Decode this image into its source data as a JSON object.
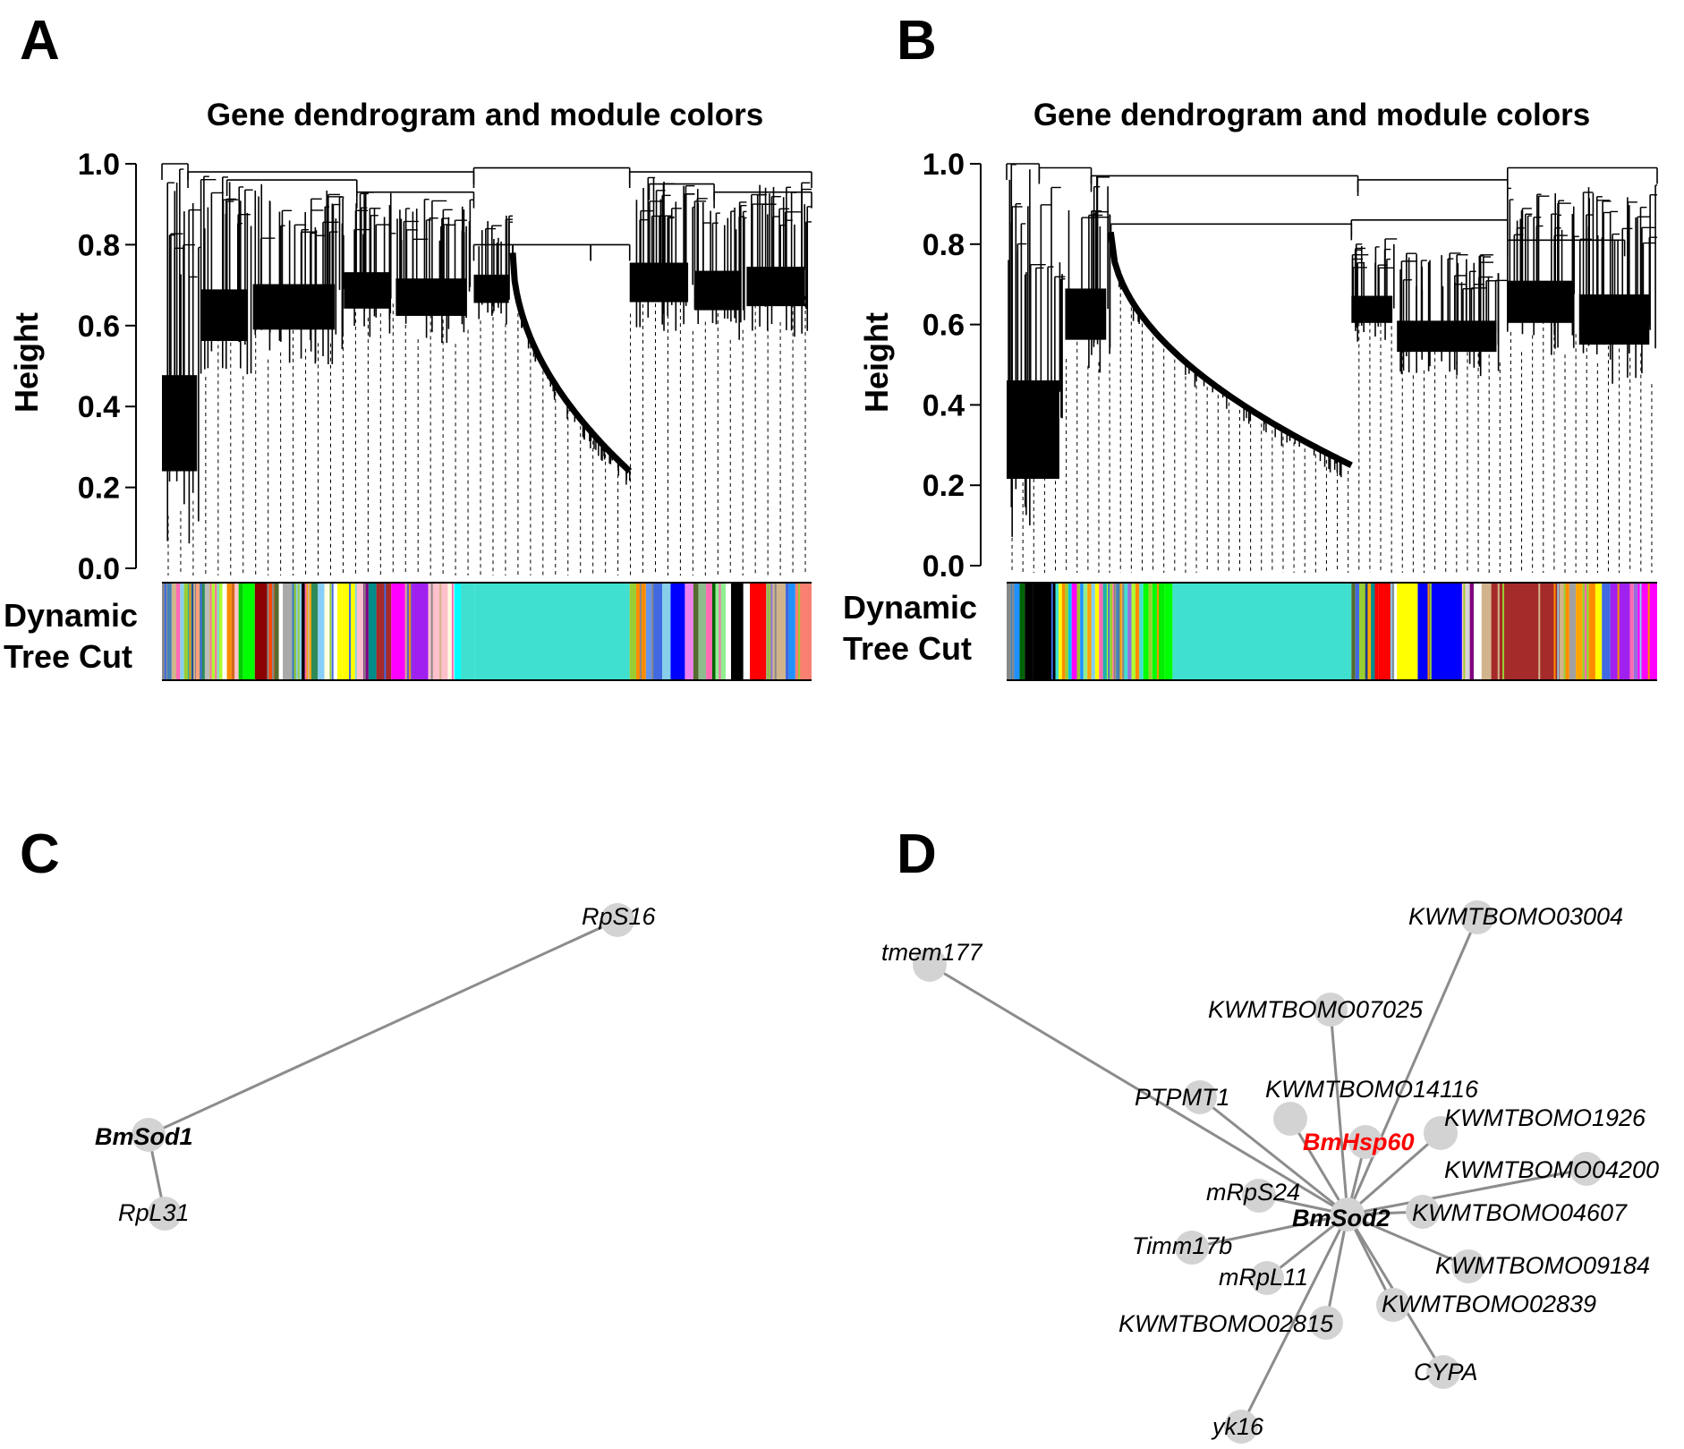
{
  "figure": {
    "panels": [
      {
        "letter": "A"
      },
      {
        "letter": "B"
      },
      {
        "letter": "C"
      },
      {
        "letter": "D"
      }
    ]
  },
  "chart_data": [
    {
      "panel": "A",
      "type": "dendrogram",
      "title": "Gene dendrogram and module colors",
      "ylabel": "Height",
      "ylim": [
        0.0,
        1.0
      ],
      "yticks": [
        "0.0",
        "0.2",
        "0.4",
        "0.6",
        "0.8",
        "1.0"
      ],
      "ytick_values": [
        0.0,
        0.2,
        0.4,
        0.6,
        0.8,
        1.0
      ],
      "color_strip_label": [
        "Dynamic",
        "Tree Cut"
      ],
      "merges": [
        {
          "from": 0.0,
          "to": 0.04,
          "h": 1.0
        },
        {
          "from": 0.04,
          "to": 0.48,
          "h": 0.98
        },
        {
          "from": 0.48,
          "to": 0.72,
          "h": 0.99
        },
        {
          "from": 0.72,
          "to": 1.0,
          "h": 0.98
        },
        {
          "from": 0.1,
          "to": 0.3,
          "h": 0.96
        },
        {
          "from": 0.3,
          "to": 0.48,
          "h": 0.93
        },
        {
          "from": 0.48,
          "to": 0.66,
          "h": 0.8
        },
        {
          "from": 0.66,
          "to": 0.72,
          "h": 0.8
        },
        {
          "from": 0.75,
          "to": 0.85,
          "h": 0.95
        },
        {
          "from": 0.85,
          "to": 1.0,
          "h": 0.93
        }
      ],
      "clusters": [
        {
          "start": 0.0,
          "end": 0.06,
          "top": 1.0,
          "bottom": 0.05
        },
        {
          "start": 0.06,
          "end": 0.14,
          "top": 0.97,
          "bottom": 0.46
        },
        {
          "start": 0.14,
          "end": 0.28,
          "top": 0.95,
          "bottom": 0.5
        },
        {
          "start": 0.28,
          "end": 0.36,
          "top": 0.93,
          "bottom": 0.57
        },
        {
          "start": 0.36,
          "end": 0.48,
          "top": 0.92,
          "bottom": 0.55
        },
        {
          "start": 0.48,
          "end": 0.54,
          "top": 0.88,
          "bottom": 0.6
        },
        {
          "start": 0.54,
          "end": 0.72,
          "top": 0.78,
          "bottom": 0.24,
          "smooth": true
        },
        {
          "start": 0.72,
          "end": 0.82,
          "top": 0.97,
          "bottom": 0.58
        },
        {
          "start": 0.82,
          "end": 0.9,
          "top": 0.95,
          "bottom": 0.56
        },
        {
          "start": 0.9,
          "end": 1.0,
          "top": 0.96,
          "bottom": 0.57
        }
      ],
      "module_strip": [
        {
          "end": 0.008,
          "color": "#888888"
        },
        {
          "end": 0.015,
          "color": "#4682b4"
        },
        {
          "end": 0.022,
          "color": "#d2b48c"
        },
        {
          "end": 0.028,
          "color": "#ff69b4"
        },
        {
          "end": 0.034,
          "color": "#87ceeb"
        },
        {
          "end": 0.04,
          "color": "#9acd32"
        },
        {
          "end": 0.046,
          "color": "#20b2aa"
        },
        {
          "end": 0.052,
          "color": "#1e3a8a"
        },
        {
          "end": 0.058,
          "color": "#ffa07a"
        },
        {
          "end": 0.066,
          "color": "#2e8b57"
        },
        {
          "end": 0.073,
          "color": "#bbbbbb"
        },
        {
          "end": 0.08,
          "color": "#adff2f"
        },
        {
          "end": 0.093,
          "color": "#adff2f"
        },
        {
          "end": 0.1,
          "color": "#ffffff"
        },
        {
          "end": 0.107,
          "color": "#ff8c00"
        },
        {
          "end": 0.112,
          "color": "#d2691e"
        },
        {
          "end": 0.118,
          "color": "#ffc0cb"
        },
        {
          "end": 0.125,
          "color": "#00cc00"
        },
        {
          "end": 0.143,
          "color": "#00ff00"
        },
        {
          "end": 0.164,
          "color": "#8b0000"
        },
        {
          "end": 0.173,
          "color": "#ff4500"
        },
        {
          "end": 0.18,
          "color": "#556b2f"
        },
        {
          "end": 0.186,
          "color": "#ffffff"
        },
        {
          "end": 0.2,
          "color": "#a9a9a9"
        },
        {
          "end": 0.207,
          "color": "#4682b4"
        },
        {
          "end": 0.215,
          "color": "#87cefa"
        },
        {
          "end": 0.222,
          "color": "#000000"
        },
        {
          "end": 0.23,
          "color": "#ffa500"
        },
        {
          "end": 0.24,
          "color": "#2e8b57"
        },
        {
          "end": 0.25,
          "color": "#87cefa"
        },
        {
          "end": 0.257,
          "color": "#ffffe0"
        },
        {
          "end": 0.27,
          "color": "#ffffff"
        },
        {
          "end": 0.278,
          "color": "#ffff00"
        },
        {
          "end": 0.3,
          "color": "#ffff00"
        },
        {
          "end": 0.31,
          "color": "#ffc0cb"
        },
        {
          "end": 0.318,
          "color": "#800080"
        },
        {
          "end": 0.33,
          "color": "#008b8b"
        },
        {
          "end": 0.353,
          "color": "#a52a2a"
        },
        {
          "end": 0.375,
          "color": "#ff00ff"
        },
        {
          "end": 0.385,
          "color": "#6a5acd"
        },
        {
          "end": 0.41,
          "color": "#a020f0"
        },
        {
          "end": 0.44,
          "color": "#ffc0cb"
        },
        {
          "end": 0.45,
          "color": "#ffffe0"
        },
        {
          "end": 0.46,
          "color": "#00ffff"
        },
        {
          "end": 0.482,
          "color": "#40e0d0"
        },
        {
          "end": 0.72,
          "color": "#40e0d0"
        },
        {
          "end": 0.73,
          "color": "#9acd32"
        },
        {
          "end": 0.745,
          "color": "#ff8c00"
        },
        {
          "end": 0.755,
          "color": "#6495ed"
        },
        {
          "end": 0.77,
          "color": "#4169e1"
        },
        {
          "end": 0.783,
          "color": "#87ceeb"
        },
        {
          "end": 0.805,
          "color": "#0000ff"
        },
        {
          "end": 0.818,
          "color": "#ee82ee"
        },
        {
          "end": 0.826,
          "color": "#556b2f"
        },
        {
          "end": 0.84,
          "color": "#8fbc8f"
        },
        {
          "end": 0.847,
          "color": "#ff69b4"
        },
        {
          "end": 0.852,
          "color": "#006400"
        },
        {
          "end": 0.868,
          "color": "#90ee90"
        },
        {
          "end": 0.876,
          "color": "#ffffff"
        },
        {
          "end": 0.895,
          "color": "#000000"
        },
        {
          "end": 0.905,
          "color": "#ffffff"
        },
        {
          "end": 0.93,
          "color": "#ff0000"
        },
        {
          "end": 0.94,
          "color": "#9370db"
        },
        {
          "end": 0.96,
          "color": "#d2b48c"
        },
        {
          "end": 0.965,
          "color": "#4169e1"
        },
        {
          "end": 0.975,
          "color": "#1e90ff"
        },
        {
          "end": 1.0,
          "color": "#fa8072"
        }
      ]
    },
    {
      "panel": "B",
      "type": "dendrogram",
      "title": "Gene dendrogram and module colors",
      "ylabel": "Height",
      "ylim": [
        0.0,
        1.0
      ],
      "yticks": [
        "0.0",
        "0.2",
        "0.4",
        "0.6",
        "0.8",
        "1.0"
      ],
      "ytick_values": [
        0.0,
        0.2,
        0.4,
        0.6,
        0.8,
        1.0
      ],
      "color_strip_label": [
        "Dynamic",
        "Tree Cut"
      ],
      "merges": [
        {
          "from": 0.0,
          "to": 0.05,
          "h": 1.0
        },
        {
          "from": 0.05,
          "to": 0.13,
          "h": 0.99
        },
        {
          "from": 0.13,
          "to": 0.54,
          "h": 0.97
        },
        {
          "from": 0.54,
          "to": 0.77,
          "h": 0.96
        },
        {
          "from": 0.77,
          "to": 1.0,
          "h": 0.99
        },
        {
          "from": 0.16,
          "to": 0.53,
          "h": 0.85
        },
        {
          "from": 0.53,
          "to": 0.77,
          "h": 0.86
        },
        {
          "from": 0.77,
          "to": 0.95,
          "h": 0.81
        }
      ],
      "clusters": [
        {
          "start": 0.0,
          "end": 0.09,
          "top": 1.0,
          "bottom": 0.02
        },
        {
          "start": 0.09,
          "end": 0.16,
          "top": 0.97,
          "bottom": 0.46
        },
        {
          "start": 0.16,
          "end": 0.53,
          "top": 0.83,
          "bottom": 0.25,
          "smooth": true
        },
        {
          "start": 0.53,
          "end": 0.6,
          "top": 0.82,
          "bottom": 0.55
        },
        {
          "start": 0.6,
          "end": 0.77,
          "top": 0.78,
          "bottom": 0.47
        },
        {
          "start": 0.77,
          "end": 0.88,
          "top": 0.94,
          "bottom": 0.52
        },
        {
          "start": 0.88,
          "end": 1.0,
          "top": 0.95,
          "bottom": 0.45
        }
      ],
      "module_strip": [
        {
          "end": 0.006,
          "color": "#888888"
        },
        {
          "end": 0.012,
          "color": "#4682b4"
        },
        {
          "end": 0.02,
          "color": "#1e90ff"
        },
        {
          "end": 0.028,
          "color": "#006400"
        },
        {
          "end": 0.04,
          "color": "#000000"
        },
        {
          "end": 0.075,
          "color": "#000000"
        },
        {
          "end": 0.08,
          "color": "#40e0d0"
        },
        {
          "end": 0.085,
          "color": "#ffff00"
        },
        {
          "end": 0.09,
          "color": "#ff8c00"
        },
        {
          "end": 0.095,
          "color": "#9acd32"
        },
        {
          "end": 0.1,
          "color": "#00bfff"
        },
        {
          "end": 0.108,
          "color": "#ff00ff"
        },
        {
          "end": 0.113,
          "color": "#9acd32"
        },
        {
          "end": 0.118,
          "color": "#1e90ff"
        },
        {
          "end": 0.124,
          "color": "#90ee90"
        },
        {
          "end": 0.13,
          "color": "#ffa500"
        },
        {
          "end": 0.136,
          "color": "#87ceeb"
        },
        {
          "end": 0.142,
          "color": "#ffff00"
        },
        {
          "end": 0.148,
          "color": "#ff69b4"
        },
        {
          "end": 0.154,
          "color": "#20b2aa"
        },
        {
          "end": 0.16,
          "color": "#adff2f"
        },
        {
          "end": 0.168,
          "color": "#ffa07a"
        },
        {
          "end": 0.174,
          "color": "#4682b4"
        },
        {
          "end": 0.18,
          "color": "#ffa500"
        },
        {
          "end": 0.186,
          "color": "#40e0d0"
        },
        {
          "end": 0.192,
          "color": "#9370db"
        },
        {
          "end": 0.198,
          "color": "#adff2f"
        },
        {
          "end": 0.204,
          "color": "#ff8c00"
        },
        {
          "end": 0.21,
          "color": "#40e0d0"
        },
        {
          "end": 0.218,
          "color": "#00ff00"
        },
        {
          "end": 0.224,
          "color": "#9acd32"
        },
        {
          "end": 0.23,
          "color": "#00ff00"
        },
        {
          "end": 0.243,
          "color": "#00ee00"
        },
        {
          "end": 0.255,
          "color": "#00ff00"
        },
        {
          "end": 0.53,
          "color": "#40e0d0"
        },
        {
          "end": 0.536,
          "color": "#556b2f"
        },
        {
          "end": 0.542,
          "color": "#4169e1"
        },
        {
          "end": 0.548,
          "color": "#9acd32"
        },
        {
          "end": 0.555,
          "color": "#1e3a8a"
        },
        {
          "end": 0.56,
          "color": "#ffa500"
        },
        {
          "end": 0.566,
          "color": "#008b8b"
        },
        {
          "end": 0.572,
          "color": "#ff0000"
        },
        {
          "end": 0.59,
          "color": "#ff0000"
        },
        {
          "end": 0.596,
          "color": "#87ceeb"
        },
        {
          "end": 0.6,
          "color": "#ffffff"
        },
        {
          "end": 0.617,
          "color": "#ffff00"
        },
        {
          "end": 0.632,
          "color": "#ffff00"
        },
        {
          "end": 0.7,
          "color": "#0000ff"
        },
        {
          "end": 0.706,
          "color": "#ffc0cb"
        },
        {
          "end": 0.712,
          "color": "#d3d3d3"
        },
        {
          "end": 0.718,
          "color": "#800080"
        },
        {
          "end": 0.73,
          "color": "#ffffff"
        },
        {
          "end": 0.745,
          "color": "#d2b48c"
        },
        {
          "end": 0.85,
          "color": "#a52a2a"
        },
        {
          "end": 0.858,
          "color": "#d2b48c"
        },
        {
          "end": 0.865,
          "color": "#ff8c00"
        },
        {
          "end": 0.875,
          "color": "#a0a0a0"
        },
        {
          "end": 0.885,
          "color": "#ffa500"
        },
        {
          "end": 0.895,
          "color": "#9acd32"
        },
        {
          "end": 0.905,
          "color": "#ff8c00"
        },
        {
          "end": 0.915,
          "color": "#ffff00"
        },
        {
          "end": 0.928,
          "color": "#4169e1"
        },
        {
          "end": 0.945,
          "color": "#a020f0"
        },
        {
          "end": 0.958,
          "color": "#a020f0"
        },
        {
          "end": 0.964,
          "color": "#ff69b4"
        },
        {
          "end": 0.97,
          "color": "#9370db"
        },
        {
          "end": 1.0,
          "color": "#ff00ff"
        }
      ]
    },
    {
      "panel": "C",
      "type": "network",
      "nodes": [
        {
          "id": "BmSod1",
          "label": "BmSod1",
          "hub": true
        },
        {
          "id": "RpS16",
          "label": "RpS16"
        },
        {
          "id": "RpL31",
          "label": "RpL31"
        }
      ],
      "edges": [
        [
          "BmSod1",
          "RpS16"
        ],
        [
          "BmSod1",
          "RpL31"
        ]
      ]
    },
    {
      "panel": "D",
      "type": "network",
      "nodes": [
        {
          "id": "BmSod2",
          "label": "BmSod2",
          "hub": true
        },
        {
          "id": "tmem177",
          "label": "tmem177"
        },
        {
          "id": "KWMTBOMO03004",
          "label": "KWMTBOMO03004"
        },
        {
          "id": "KWMTBOMO07025",
          "label": "KWMTBOMO07025"
        },
        {
          "id": "PTPMT1",
          "label": "PTPMT1"
        },
        {
          "id": "KWMTBOMO14116",
          "label": "KWMTBOMO14116"
        },
        {
          "id": "BmHsp60",
          "label": "BmHsp60",
          "highlight": true
        },
        {
          "id": "KWMTBOMO1926",
          "label": "KWMTBOMO1926"
        },
        {
          "id": "KWMTBOMO04200",
          "label": "KWMTBOMO04200"
        },
        {
          "id": "mRpS24",
          "label": "mRpS24"
        },
        {
          "id": "KWMTBOMO04607",
          "label": "KWMTBOMO04607"
        },
        {
          "id": "Timm17b",
          "label": "Timm17b"
        },
        {
          "id": "KWMTBOMO09184",
          "label": "KWMTBOMO09184"
        },
        {
          "id": "mRpL11",
          "label": "mRpL11"
        },
        {
          "id": "KWMTBOMO02839",
          "label": "KWMTBOMO02839"
        },
        {
          "id": "KWMTBOMO02815",
          "label": "KWMTBOMO02815"
        },
        {
          "id": "CYPA",
          "label": "CYPA"
        },
        {
          "id": "yk16",
          "label": "yk16"
        }
      ],
      "edges": [
        [
          "BmSod2",
          "tmem177"
        ],
        [
          "BmSod2",
          "KWMTBOMO03004"
        ],
        [
          "BmSod2",
          "KWMTBOMO07025"
        ],
        [
          "BmSod2",
          "PTPMT1"
        ],
        [
          "BmSod2",
          "KWMTBOMO14116"
        ],
        [
          "BmSod2",
          "BmHsp60"
        ],
        [
          "BmSod2",
          "KWMTBOMO1926"
        ],
        [
          "BmSod2",
          "KWMTBOMO04200"
        ],
        [
          "BmSod2",
          "mRpS24"
        ],
        [
          "BmSod2",
          "KWMTBOMO04607"
        ],
        [
          "BmSod2",
          "Timm17b"
        ],
        [
          "BmSod2",
          "KWMTBOMO09184"
        ],
        [
          "BmSod2",
          "mRpL11"
        ],
        [
          "BmSod2",
          "KWMTBOMO02839"
        ],
        [
          "BmSod2",
          "KWMTBOMO02815"
        ],
        [
          "BmSod2",
          "CYPA"
        ],
        [
          "BmSod2",
          "yk16"
        ]
      ]
    }
  ]
}
